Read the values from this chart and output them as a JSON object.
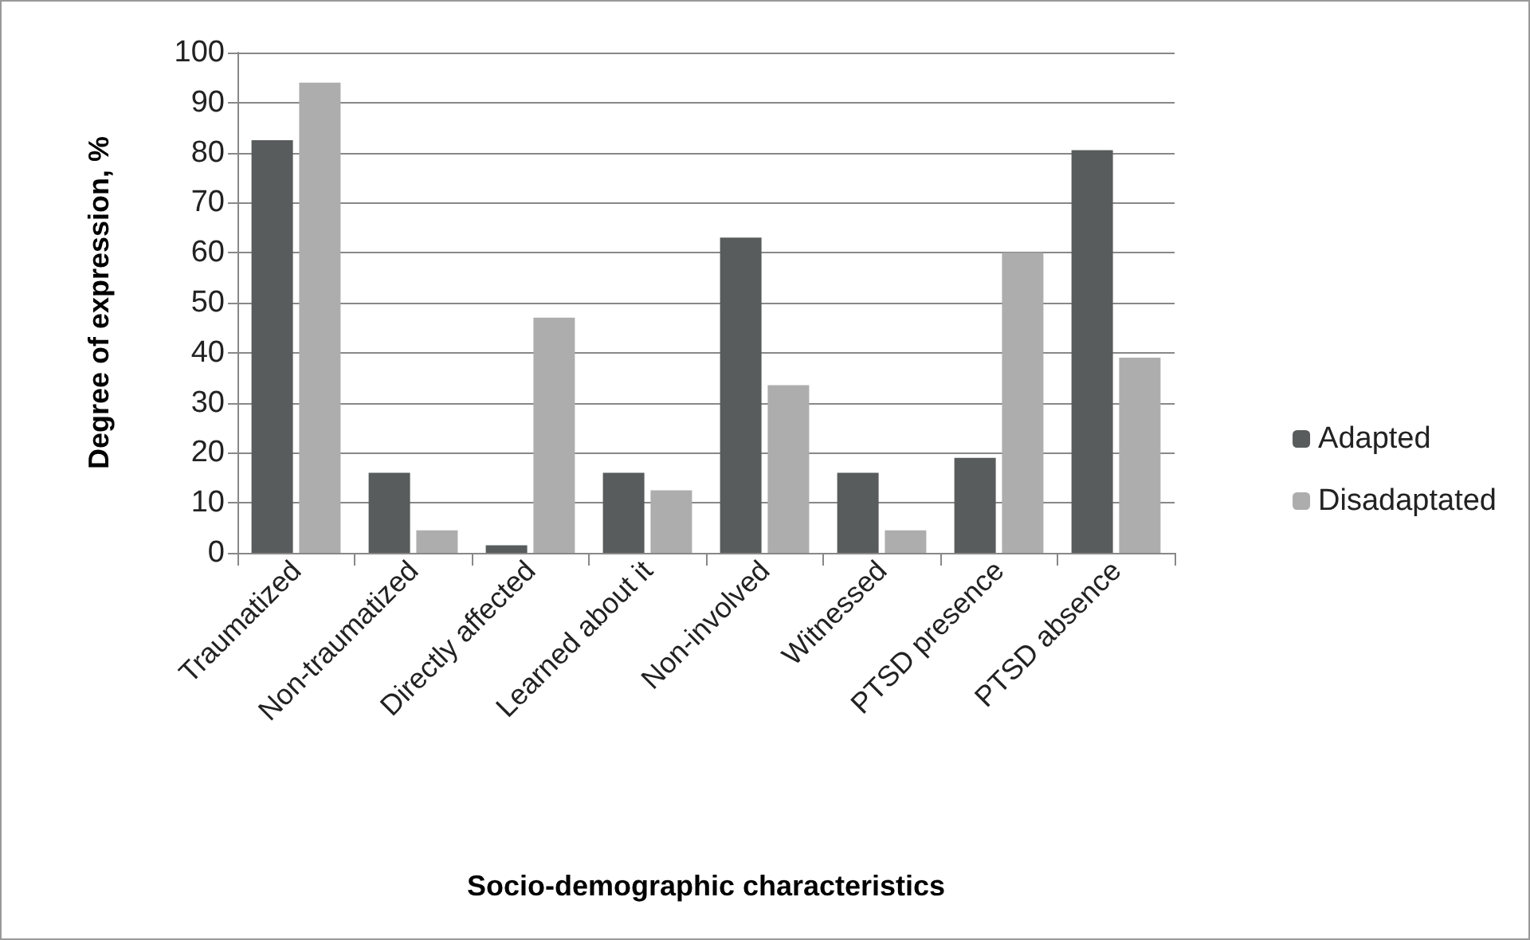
{
  "chart_data": {
    "type": "bar",
    "xlabel": "Socio-demographic characteristics",
    "ylabel": "Degree of expression, %",
    "categories": [
      "Traumatized",
      "Non-traumatized",
      "Directly affected",
      "Learned about it",
      "Non-involved",
      "Witnessed",
      "PTSD presence",
      "PTSD absence"
    ],
    "series": [
      {
        "name": "Adapted",
        "color": "#595c5c",
        "values": [
          82.5,
          16,
          1.5,
          16,
          63,
          16,
          19,
          80.5
        ]
      },
      {
        "name": "Disadaptated",
        "color": "#adadad",
        "values": [
          94,
          4.5,
          47,
          12.5,
          33.5,
          4.5,
          60,
          39
        ]
      }
    ],
    "ylim": [
      0,
      100
    ],
    "yticks": [
      0,
      10,
      20,
      30,
      40,
      50,
      60,
      70,
      80,
      90,
      100
    ],
    "grid": "y",
    "legend": "right"
  }
}
